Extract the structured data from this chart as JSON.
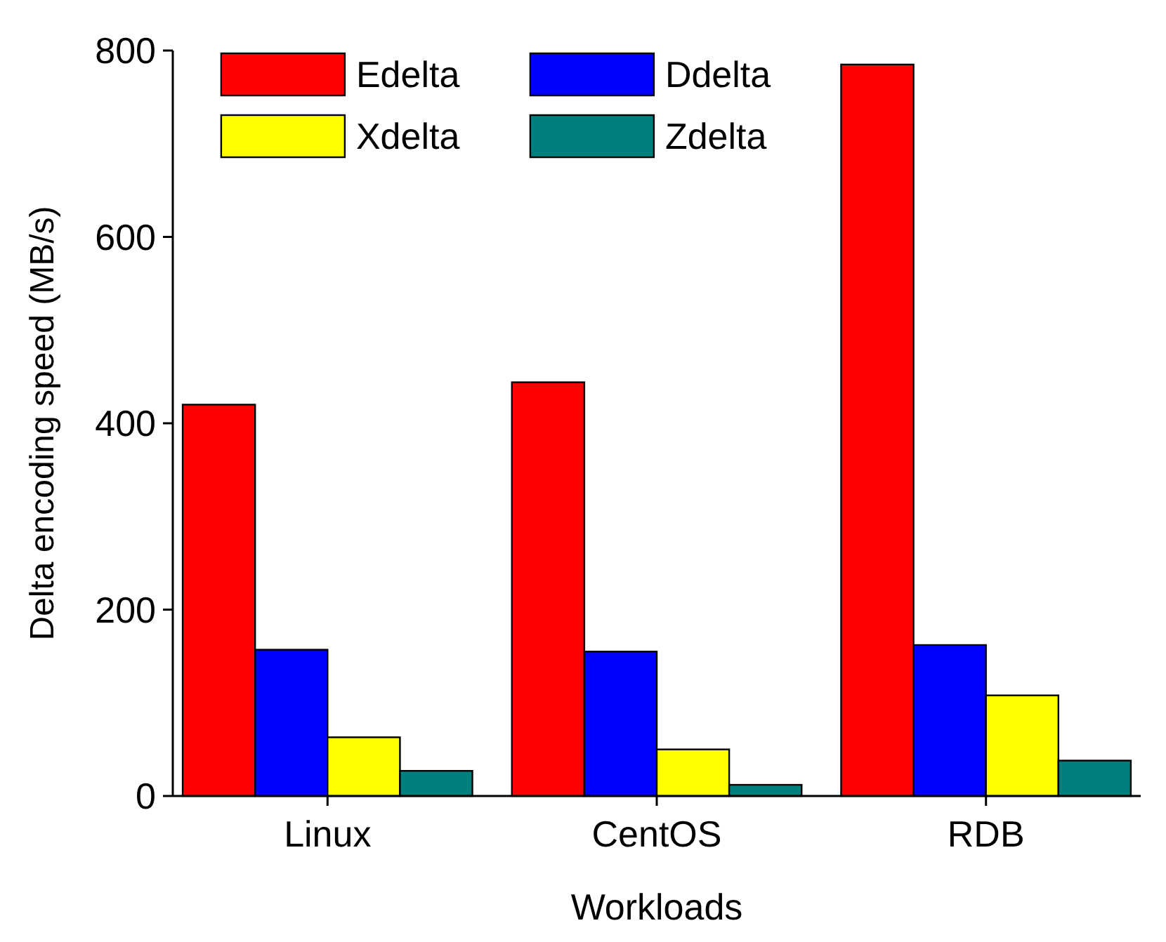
{
  "chart_data": {
    "type": "bar",
    "xlabel": "Workloads",
    "ylabel": "Delta encoding speed (MB/s)",
    "categories": [
      "Linux",
      "CentOS",
      "RDB"
    ],
    "series": [
      {
        "name": "Edelta",
        "color": "#ff0000",
        "values": [
          420,
          444,
          785
        ]
      },
      {
        "name": "Ddelta",
        "color": "#0000ff",
        "values": [
          157,
          155,
          162
        ]
      },
      {
        "name": "Xdelta",
        "color": "#ffff00",
        "values": [
          63,
          50,
          108
        ]
      },
      {
        "name": "Zdelta",
        "color": "#007f7f",
        "values": [
          27,
          12,
          38
        ]
      }
    ],
    "ylim": [
      0,
      800
    ],
    "yticks": [
      0,
      200,
      400,
      600,
      800
    ],
    "grid": false,
    "legend": "top"
  }
}
